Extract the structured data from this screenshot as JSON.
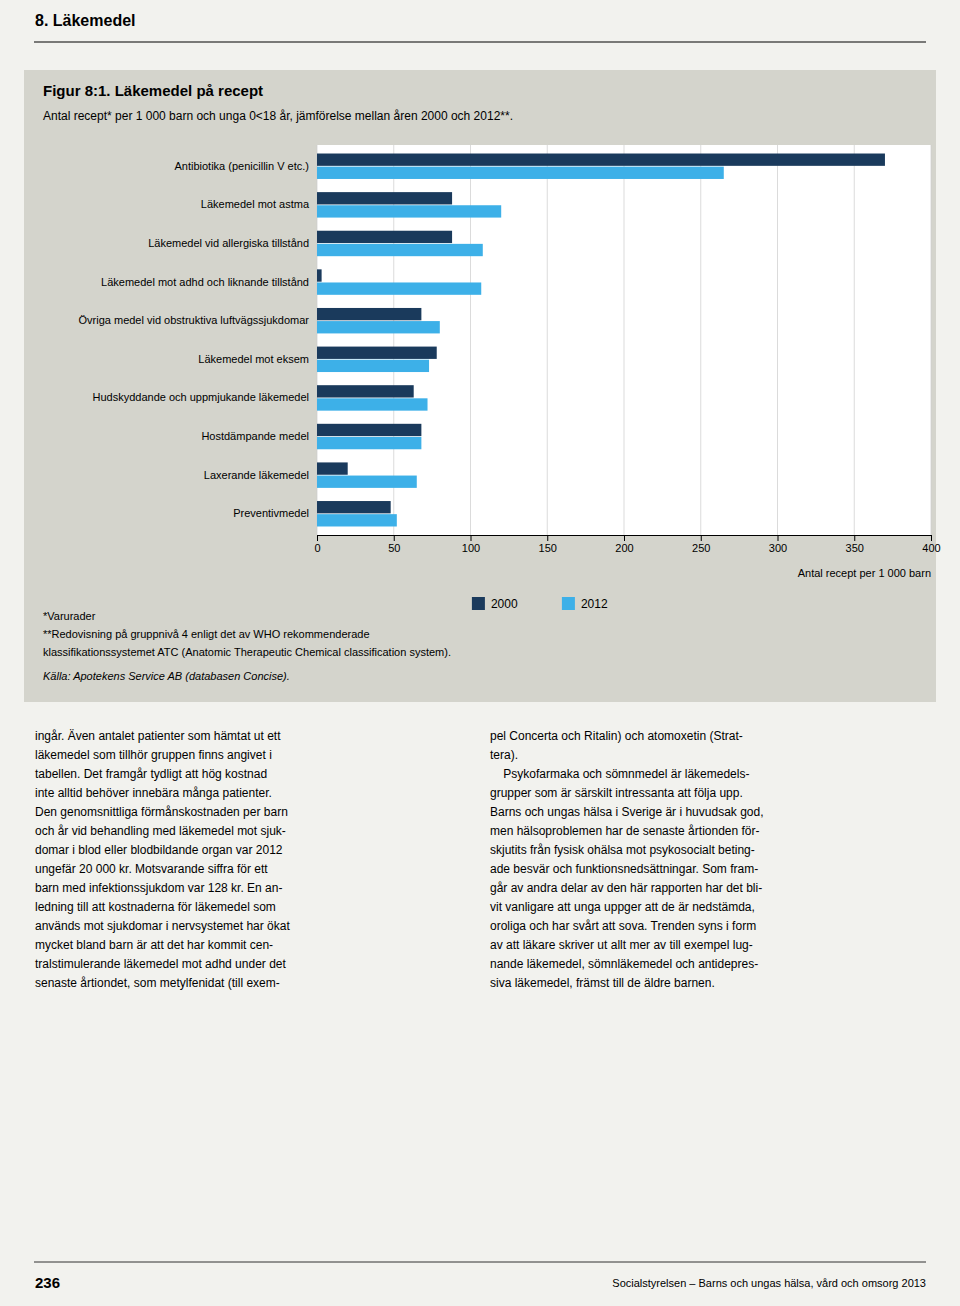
{
  "chart_data": {
    "type": "bar",
    "orientation": "horizontal",
    "title": "Figur 8:1. Läkemedel på recept",
    "subtitle": "Antal  recept* per 1 000 barn och unga 0<18 år, jämförelse mellan åren 2000 och 2012**.",
    "categories": [
      "Antibiotika (penicillin V etc.)",
      "Läkemedel mot astma",
      "Läkemedel vid allergiska tillstånd",
      "Läkemedel mot adhd och liknande tillstånd",
      "Övriga medel vid obstruktiva luftvägssjukdomar",
      "Läkemedel mot eksem",
      "Hudskyddande och uppmjukande läkemedel",
      "Hostdämpande medel",
      "Laxerande läkemedel",
      "Preventivmedel"
    ],
    "series": [
      {
        "name": "2000",
        "color": "#1a3a5c",
        "values": [
          370,
          88,
          88,
          3,
          68,
          78,
          63,
          68,
          20,
          48
        ]
      },
      {
        "name": "2012",
        "color": "#3db0e8",
        "values": [
          265,
          120,
          108,
          107,
          80,
          73,
          72,
          68,
          65,
          52
        ]
      }
    ],
    "xlim": [
      0,
      400
    ],
    "xticks": [
      0,
      50,
      100,
      150,
      200,
      250,
      300,
      350,
      400
    ],
    "xlabel": "Antal recept per 1 000 barn",
    "grid": true,
    "legend": "bottom",
    "annotations": [
      "8. Läkemedel",
      "*Varurader",
      "**Redovisning på gruppnivå 4 enligt det av WHO rekommenderade",
      "klassifikationssystemet ATC (Anatomic Therapeutic Chemical classification system).",
      "Källa: Apotekens Service AB (databasen Concise).",
      "ingår. Även antalet patienter som hämtat ut ett\nläkemedel som tillhör gruppen finns angivet i\ntabellen. Det framgår tydligt att hög kostnad\ninte alltid behöver innebära många patienter.\nDen genomsnittliga förmånskostnaden per barn\noch år vid behandling med läkemedel mot sjuk-\ndomar i blod eller blodbildande organ var 2012\nungefär 20 000 kr. Motsvarande siffra för ett\nbarn med infektionssjukdom var 128 kr. En an-\nledning till att kostnaderna för läkemedel som\nanvänds mot sjukdomar i nervsystemet har ökat\nmycket bland barn är att det har kommit cen-\ntralstimulerande läkemedel mot adhd under det\nsenaste årtiondet, som metylfenidat (till exem-",
      "pel Concerta och Ritalin) och atomoxetin (Strat-\ntera).\n    Psykofarmaka och sömnmedel är läkemedels-\ngrupper som är särskilt intressanta att följa upp.\nBarns och ungas hälsa i Sverige är i huvudsak god,\nmen hälsoproblemen har de senaste årtionden för-\nskjutits från fysisk ohälsa mot psykosocialt beting-\nade besvär och funktionsnedsättningar. Som fram-\ngår av andra delar av den här rapporten har det bli-\nvit vanligare att unga uppger att de är nedstämda,\noroliga och har svårt att sova. Trenden syns i form\nav att läkare skriver ut allt mer av till exempel lug-\nnande läkemedel, sömnläkemedel och antidepres-\nsiva läkemedel, främst till de äldre barnen.",
      "236",
      "Socialstyrelsen – Barns och ungas hälsa, vård och omsorg 2013"
    ]
  }
}
